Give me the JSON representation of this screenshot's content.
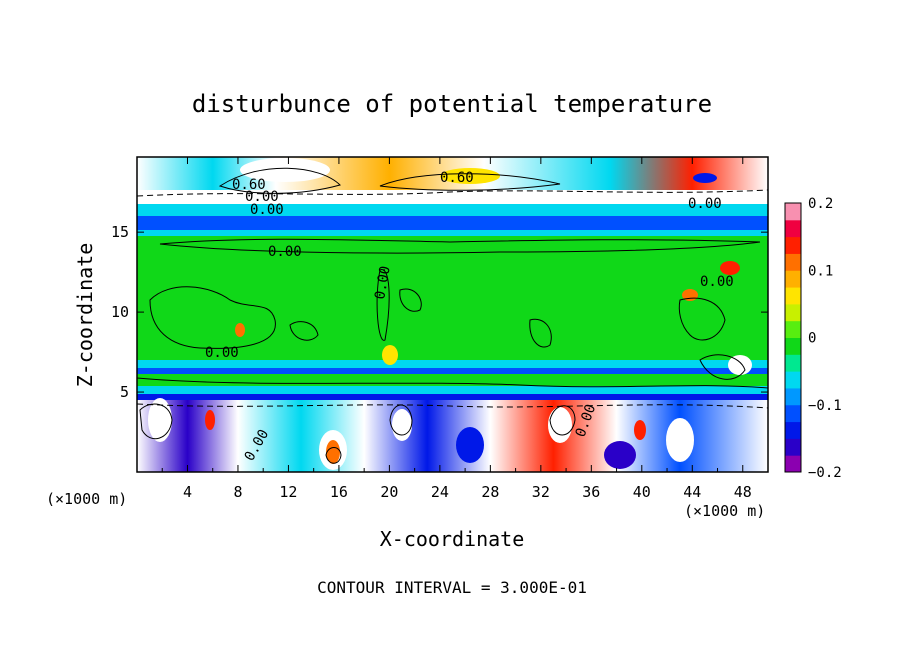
{
  "chart_data": {
    "type": "heatmap",
    "title": "disturbunce of potential temperature",
    "xlabel": "X-coordinate",
    "ylabel": "Z-coordinate",
    "x_unit": "(×1000 m)",
    "y_unit": "(×1000 m)",
    "xlim": [
      0,
      50
    ],
    "ylim": [
      0,
      19.7
    ],
    "x_ticks": [
      "4",
      "8",
      "12",
      "16",
      "20",
      "24",
      "28",
      "32",
      "36",
      "40",
      "44",
      "48"
    ],
    "y_ticks": [
      "5",
      "10",
      "15"
    ],
    "colorbar_ticks": [
      "0.2",
      "0.1",
      "0",
      "−0.1",
      "−0.2"
    ],
    "colorbar_range": [
      -0.2,
      0.2
    ],
    "contour_note": "CONTOUR INTERVAL = 3.000E-01",
    "contour_labels": [
      "0.00",
      "0.00",
      "0.00",
      "0.00",
      "0.60",
      "0.60",
      "0.00",
      "0.00",
      "0.00",
      "0.00",
      "0.00"
    ],
    "palette": [
      "#8b00b0",
      "#2a00c8",
      "#0018e8",
      "#0050ff",
      "#0098ff",
      "#00d8f0",
      "#00e890",
      "#10d818",
      "#58ee10",
      "#c8f000",
      "#ffe400",
      "#ffb000",
      "#ff7000",
      "#ff2000",
      "#f00040",
      "#f890b0"
    ]
  }
}
